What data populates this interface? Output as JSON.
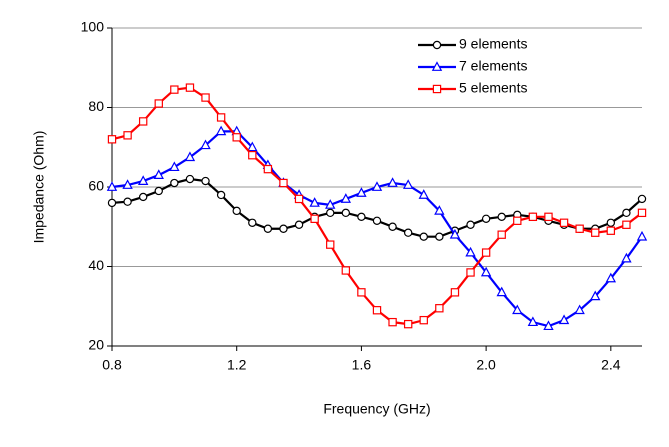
{
  "chart_data": {
    "type": "line",
    "xlabel": "Frequency (GHz)",
    "ylabel": "Impedance (Ohm)",
    "x": [
      0.8,
      0.85,
      0.9,
      0.95,
      1.0,
      1.05,
      1.1,
      1.15,
      1.2,
      1.25,
      1.3,
      1.35,
      1.4,
      1.45,
      1.5,
      1.55,
      1.6,
      1.65,
      1.7,
      1.75,
      1.8,
      1.85,
      1.9,
      1.95,
      2.0,
      2.05,
      2.1,
      2.15,
      2.2,
      2.25,
      2.3,
      2.35,
      2.4,
      2.45,
      2.5
    ],
    "series": [
      {
        "name": "9 elements",
        "color": "#000000",
        "marker": "circle",
        "values": [
          56,
          56.3,
          57.5,
          59,
          61,
          62,
          61.5,
          58,
          54,
          51,
          49.5,
          49.5,
          50.5,
          52.5,
          53.5,
          53.5,
          52.5,
          51.5,
          50,
          48.5,
          47.5,
          47.5,
          49,
          50.5,
          52,
          52.5,
          53,
          52.5,
          51.5,
          50.5,
          49.5,
          49.5,
          51,
          53.5,
          57
        ]
      },
      {
        "name": "7 elements",
        "color": "#0000ff",
        "marker": "triangle",
        "values": [
          60,
          60.5,
          61.5,
          63,
          65,
          67.5,
          70.5,
          74,
          74,
          70,
          65.5,
          61,
          58,
          56,
          55.5,
          57,
          58.5,
          60,
          61,
          60.5,
          58,
          54,
          48,
          43.5,
          38.5,
          33.5,
          29,
          26,
          25,
          26.5,
          29,
          32.5,
          37,
          42,
          47.5
        ]
      },
      {
        "name": "5 elements",
        "color": "#ff0000",
        "marker": "square",
        "values": [
          72,
          73,
          76.5,
          81,
          84.5,
          85,
          82.5,
          77.5,
          72.5,
          68,
          64.5,
          61,
          57,
          52,
          45.5,
          39,
          33.5,
          29,
          26,
          25.5,
          26.5,
          29.5,
          33.5,
          38.5,
          43.5,
          48,
          51.5,
          52.5,
          52.5,
          51,
          49.5,
          48.5,
          49,
          50.5,
          53.5
        ]
      }
    ],
    "xlim": [
      0.8,
      2.5
    ],
    "xticks": [
      0.8,
      1.2,
      1.6,
      {
        "value": 2,
        "label": "2.0"
      },
      2.4
    ],
    "ylim": [
      20,
      100
    ],
    "yticks": [
      20,
      40,
      60,
      80,
      100
    ],
    "grid": true,
    "legend": "top-right"
  }
}
